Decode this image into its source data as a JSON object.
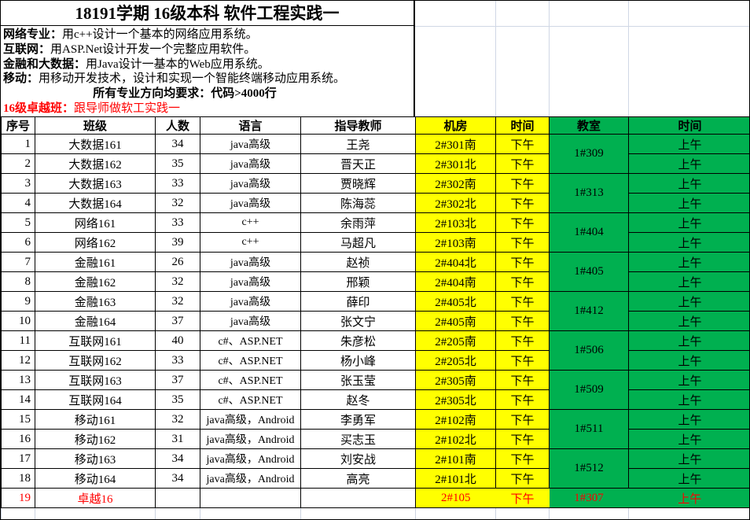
{
  "title": "18191学期 16级本科 软件工程实践一",
  "notes": [
    {
      "label": "网络专业：",
      "text": "用c++设计一个基本的网络应用系统。"
    },
    {
      "label": "互联网：",
      "text": "用ASP.Net设计开发一个完整应用软件。"
    },
    {
      "label": "金融和大数据：",
      "text": "用Java设计一基本的Web应用系统。"
    },
    {
      "label": "移动：",
      "text": "用移动开发技术，设计和实现一个智能终端移动应用系统。"
    }
  ],
  "requirement": "所有专业方向均要求：代码>4000行",
  "excellence": {
    "label": "16级卓越班：",
    "text": "跟导师做软工实践一"
  },
  "colors": {
    "yellow": "#FFFF00",
    "green": "#00B050",
    "red": "#FF0000",
    "grid_faint": "#D0D7E5"
  },
  "table": {
    "headers": [
      "序号",
      "班级",
      "人数",
      "语言",
      "指导教师",
      "机房",
      "时间",
      "教室",
      "时间"
    ],
    "rows": [
      {
        "no": "1",
        "class": "大数据161",
        "count": "34",
        "language": "java高级",
        "teacher": "王尧",
        "lab": "2#301南",
        "lab_time": "下午",
        "room": "1#309",
        "room_span": 2,
        "room_time": "上午",
        "red": false
      },
      {
        "no": "2",
        "class": "大数据162",
        "count": "35",
        "language": "java高级",
        "teacher": "晋天正",
        "lab": "2#301北",
        "lab_time": "下午",
        "room": null,
        "room_time": "上午",
        "red": false
      },
      {
        "no": "3",
        "class": "大数据163",
        "count": "33",
        "language": "java高级",
        "teacher": "贾晓辉",
        "lab": "2#302南",
        "lab_time": "下午",
        "room": "1#313",
        "room_span": 2,
        "room_time": "上午",
        "red": false
      },
      {
        "no": "4",
        "class": "大数据164",
        "count": "32",
        "language": "java高级",
        "teacher": "陈海蕊",
        "lab": "2#302北",
        "lab_time": "下午",
        "room": null,
        "room_time": "上午",
        "red": false
      },
      {
        "no": "5",
        "class": "网络161",
        "count": "33",
        "language": "c++",
        "teacher": "余雨萍",
        "lab": "2#103北",
        "lab_time": "下午",
        "room": "1#404",
        "room_span": 2,
        "room_time": "上午",
        "red": false
      },
      {
        "no": "6",
        "class": "网络162",
        "count": "39",
        "language": "c++",
        "teacher": "马超凡",
        "lab": "2#103南",
        "lab_time": "下午",
        "room": null,
        "room_time": "上午",
        "red": false
      },
      {
        "no": "7",
        "class": "金融161",
        "count": "26",
        "language": "java高级",
        "teacher": "赵祯",
        "lab": "2#404北",
        "lab_time": "下午",
        "room": "1#405",
        "room_span": 2,
        "room_time": "上午",
        "red": false
      },
      {
        "no": "8",
        "class": "金融162",
        "count": "32",
        "language": "java高级",
        "teacher": "邢颖",
        "lab": "2#404南",
        "lab_time": "下午",
        "room": null,
        "room_time": "上午",
        "red": false
      },
      {
        "no": "9",
        "class": "金融163",
        "count": "32",
        "language": "java高级",
        "teacher": "薛印",
        "lab": "2#405北",
        "lab_time": "下午",
        "room": "1#412",
        "room_span": 2,
        "room_time": "上午",
        "red": false
      },
      {
        "no": "10",
        "class": "金融164",
        "count": "37",
        "language": "java高级",
        "teacher": "张文宁",
        "lab": "2#405南",
        "lab_time": "下午",
        "room": null,
        "room_time": "上午",
        "red": false
      },
      {
        "no": "11",
        "class": "互联网161",
        "count": "40",
        "language": "c#、ASP.NET",
        "teacher": "朱彦松",
        "lab": "2#205南",
        "lab_time": "下午",
        "room": "1#506",
        "room_span": 2,
        "room_time": "上午",
        "red": false
      },
      {
        "no": "12",
        "class": "互联网162",
        "count": "33",
        "language": "c#、ASP.NET",
        "teacher": "杨小峰",
        "lab": "2#205北",
        "lab_time": "下午",
        "room": null,
        "room_time": "上午",
        "red": false
      },
      {
        "no": "13",
        "class": "互联网163",
        "count": "37",
        "language": "c#、ASP.NET",
        "teacher": "张玉莹",
        "lab": "2#305南",
        "lab_time": "下午",
        "room": "1#509",
        "room_span": 2,
        "room_time": "上午",
        "red": false
      },
      {
        "no": "14",
        "class": "互联网164",
        "count": "35",
        "language": "c#、ASP.NET",
        "teacher": "赵冬",
        "lab": "2#305北",
        "lab_time": "下午",
        "room": null,
        "room_time": "上午",
        "red": false
      },
      {
        "no": "15",
        "class": "移动161",
        "count": "32",
        "language": "java高级，Android",
        "teacher": "李勇军",
        "lab": "2#102南",
        "lab_time": "下午",
        "room": "1#511",
        "room_span": 2,
        "room_time": "上午",
        "red": false
      },
      {
        "no": "16",
        "class": "移动162",
        "count": "31",
        "language": "java高级，Android",
        "teacher": "买志玉",
        "lab": "2#102北",
        "lab_time": "下午",
        "room": null,
        "room_time": "上午",
        "red": false
      },
      {
        "no": "17",
        "class": "移动163",
        "count": "34",
        "language": "java高级，Android",
        "teacher": "刘安战",
        "lab": "2#101南",
        "lab_time": "下午",
        "room": "1#512",
        "room_span": 2,
        "room_time": "上午",
        "red": false
      },
      {
        "no": "18",
        "class": "移动164",
        "count": "34",
        "language": "java高级，Android",
        "teacher": "高亮",
        "lab": "2#101北",
        "lab_time": "下午",
        "room": null,
        "room_time": "上午",
        "red": false
      },
      {
        "no": "19",
        "class": "卓越16",
        "count": "",
        "language": "",
        "teacher": "",
        "lab": "2#105",
        "lab_time": "下午",
        "room": "1#307",
        "room_span": 1,
        "room_time": "上午",
        "red": true
      }
    ]
  }
}
